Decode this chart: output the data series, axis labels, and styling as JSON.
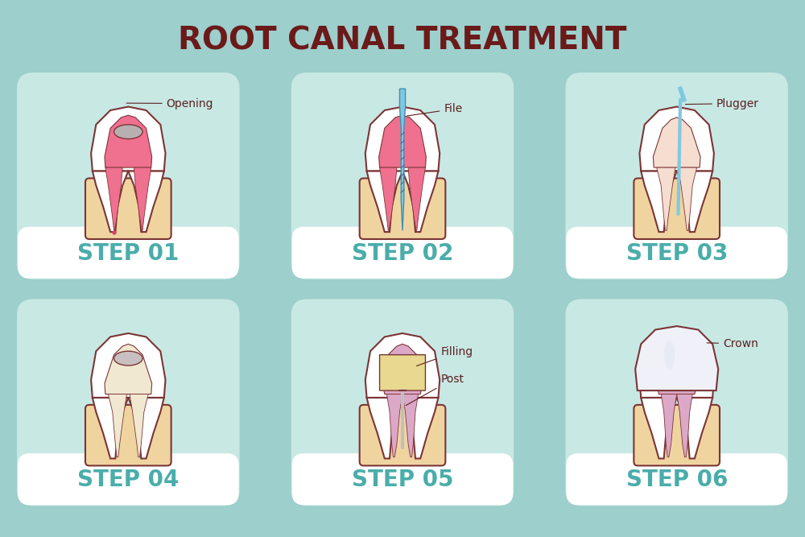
{
  "title": "ROOT CANAL TREATMENT",
  "title_color": "#6b1a1a",
  "title_fontsize": 28,
  "bg_color": "#9dcfcc",
  "card_bg": "#c8e8e4",
  "label_bg": "#ffffff",
  "step_color": "#4aadaa",
  "step_fontsize": 20,
  "steps": [
    "STEP 01",
    "STEP 02",
    "STEP 03",
    "STEP 04",
    "STEP 05",
    "STEP 06"
  ],
  "tooth_white": "#ffffff",
  "tooth_outline": "#7b3535",
  "pulp_pink": "#f07090",
  "pulp_dark": "#d84070",
  "gum_peach": "#f0d4a0",
  "tool_blue": "#80c8e0",
  "filling_yellow": "#e8d890",
  "post_color": "#c0c0c0",
  "crown_white": "#f0f0f8",
  "annotation_color": "#5a2020",
  "annotation_fontsize": 10
}
